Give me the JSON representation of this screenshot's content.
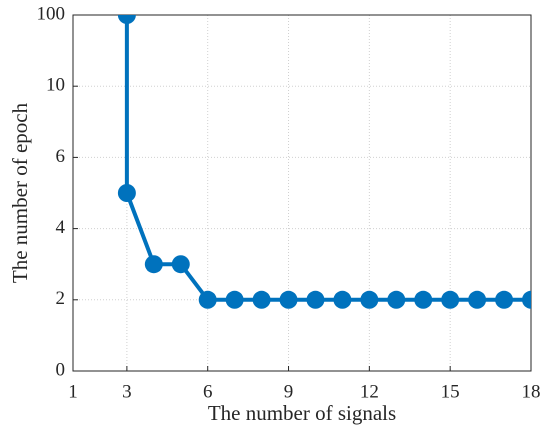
{
  "chart_data": {
    "type": "line",
    "xlabel": "The number of signals",
    "ylabel": "The number of epoch",
    "x": [
      3,
      3,
      4,
      5,
      6,
      7,
      8,
      9,
      10,
      11,
      12,
      13,
      14,
      15,
      16,
      17,
      18
    ],
    "series": [
      {
        "color": "#0072bd",
        "values": [
          100,
          5,
          3,
          3,
          2,
          2,
          2,
          2,
          2,
          2,
          2,
          2,
          2,
          2,
          2,
          2,
          2
        ]
      }
    ],
    "xlim": [
      1,
      18
    ],
    "xticks": [
      1,
      3,
      6,
      9,
      12,
      15,
      18
    ],
    "ylim": [
      0,
      100
    ],
    "yticks": [
      0,
      2,
      4,
      6,
      10,
      100
    ],
    "yscale": "piecewise",
    "grid": true
  }
}
